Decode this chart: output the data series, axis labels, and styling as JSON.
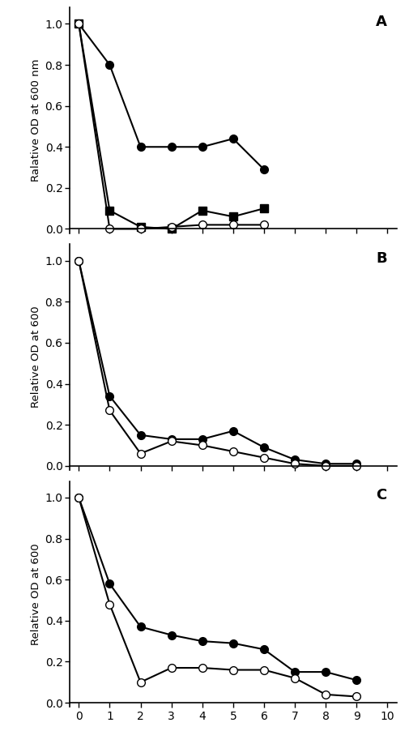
{
  "panel_A": {
    "label": "A",
    "ylabel": "Ralative OD at 600 nm",
    "series": [
      {
        "x": [
          0,
          1,
          2,
          3,
          4,
          5,
          6
        ],
        "y": [
          1.0,
          0.8,
          0.4,
          0.4,
          0.4,
          0.44,
          0.29
        ],
        "marker": "o",
        "filled": true,
        "color": "black"
      },
      {
        "x": [
          0,
          1,
          2,
          3,
          4,
          5,
          6
        ],
        "y": [
          1.0,
          0.09,
          0.01,
          0.0,
          0.09,
          0.06,
          0.1
        ],
        "marker": "s",
        "filled": true,
        "color": "black"
      },
      {
        "x": [
          0,
          1,
          2,
          3,
          4,
          5,
          6
        ],
        "y": [
          1.0,
          0.0,
          0.0,
          0.01,
          0.02,
          0.02,
          0.02
        ],
        "marker": "o",
        "filled": false,
        "color": "black"
      }
    ],
    "ylim": [
      -0.02,
      1.08
    ],
    "xlim": [
      -0.3,
      10.3
    ],
    "xticks": [
      0,
      1,
      2,
      3,
      4,
      5,
      6,
      7,
      8,
      9,
      10
    ],
    "yticks": [
      0.0,
      0.2,
      0.4,
      0.6,
      0.8,
      1.0
    ]
  },
  "panel_B": {
    "label": "B",
    "ylabel": "Relative OD at 600",
    "series": [
      {
        "x": [
          0,
          1,
          2,
          3,
          4,
          5,
          6,
          7,
          8,
          9
        ],
        "y": [
          1.0,
          0.34,
          0.15,
          0.13,
          0.13,
          0.17,
          0.09,
          0.03,
          0.01,
          0.01
        ],
        "marker": "o",
        "filled": true,
        "color": "black"
      },
      {
        "x": [
          0,
          1,
          2,
          3,
          4,
          5,
          6,
          7,
          8,
          9
        ],
        "y": [
          1.0,
          0.27,
          0.06,
          0.12,
          0.1,
          0.07,
          0.04,
          0.01,
          0.0,
          0.0
        ],
        "marker": "o",
        "filled": false,
        "color": "black"
      }
    ],
    "ylim": [
      -0.02,
      1.08
    ],
    "xlim": [
      -0.3,
      10.3
    ],
    "xticks": [
      0,
      1,
      2,
      3,
      4,
      5,
      6,
      7,
      8,
      9,
      10
    ],
    "yticks": [
      0.0,
      0.2,
      0.4,
      0.6,
      0.8,
      1.0
    ]
  },
  "panel_C": {
    "label": "C",
    "ylabel": "Relative OD at 600",
    "series": [
      {
        "x": [
          0,
          1,
          2,
          3,
          4,
          5,
          6,
          7,
          8,
          9
        ],
        "y": [
          1.0,
          0.58,
          0.37,
          0.33,
          0.3,
          0.29,
          0.26,
          0.15,
          0.15,
          0.11
        ],
        "marker": "o",
        "filled": true,
        "color": "black"
      },
      {
        "x": [
          0,
          1,
          2,
          3,
          4,
          5,
          6,
          7,
          8,
          9
        ],
        "y": [
          1.0,
          0.48,
          0.1,
          0.17,
          0.17,
          0.16,
          0.16,
          0.12,
          0.04,
          0.03
        ],
        "marker": "o",
        "filled": false,
        "color": "black"
      }
    ],
    "ylim": [
      -0.02,
      1.08
    ],
    "xlim": [
      -0.3,
      10.3
    ],
    "xticks": [
      0,
      1,
      2,
      3,
      4,
      5,
      6,
      7,
      8,
      9,
      10
    ],
    "yticks": [
      0.0,
      0.2,
      0.4,
      0.6,
      0.8,
      1.0
    ]
  },
  "figure_bgcolor": "#ffffff",
  "markersize": 7,
  "linewidth": 1.5
}
